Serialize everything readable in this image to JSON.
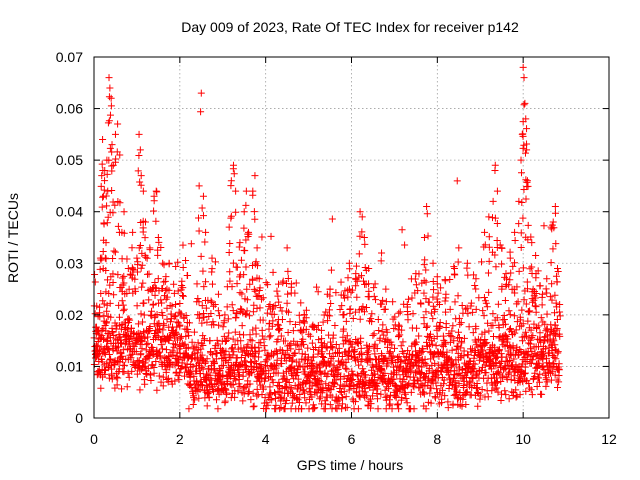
{
  "chart_data": {
    "type": "scatter",
    "title": "Day 009 of 2023, Rate Of TEC Index for receiver p142",
    "xlabel": "GPS time / hours",
    "ylabel": "ROTI / TECUs",
    "xlim": [
      0,
      12
    ],
    "ylim": [
      0,
      0.07
    ],
    "xticks": [
      0,
      2,
      4,
      6,
      8,
      10,
      12
    ],
    "yticks": [
      0,
      0.01,
      0.02,
      0.03,
      0.04,
      0.05,
      0.06,
      0.07
    ],
    "xtick_labels": [
      "0",
      "2",
      "4",
      "6",
      "8",
      "10",
      "12"
    ],
    "ytick_labels": [
      "0",
      "0.01",
      "0.02",
      "0.03",
      "0.04",
      "0.05",
      "0.06",
      "0.07"
    ],
    "grid": true,
    "marker": "+",
    "series": [
      {
        "name": "ROTI",
        "color": "#ff0000",
        "x_start": 0.0,
        "x_end": 10.85,
        "typical_value": 0.009,
        "points": [
          {
            "x": 0.05,
            "y": 0.0125
          },
          {
            "x": 0.1,
            "y": 0.017
          },
          {
            "x": 0.15,
            "y": 0.031
          },
          {
            "x": 0.18,
            "y": 0.047
          },
          {
            "x": 0.2,
            "y": 0.054
          },
          {
            "x": 0.22,
            "y": 0.043
          },
          {
            "x": 0.25,
            "y": 0.048
          },
          {
            "x": 0.28,
            "y": 0.034
          },
          {
            "x": 0.3,
            "y": 0.05
          },
          {
            "x": 0.32,
            "y": 0.044
          },
          {
            "x": 0.35,
            "y": 0.066
          },
          {
            "x": 0.37,
            "y": 0.064
          },
          {
            "x": 0.4,
            "y": 0.062
          },
          {
            "x": 0.42,
            "y": 0.053
          },
          {
            "x": 0.45,
            "y": 0.049
          },
          {
            "x": 0.5,
            "y": 0.055
          },
          {
            "x": 0.55,
            "y": 0.057
          },
          {
            "x": 0.6,
            "y": 0.051
          },
          {
            "x": 0.65,
            "y": 0.036
          },
          {
            "x": 0.7,
            "y": 0.04
          },
          {
            "x": 0.8,
            "y": 0.029
          },
          {
            "x": 0.9,
            "y": 0.036
          },
          {
            "x": 1.0,
            "y": 0.031
          },
          {
            "x": 1.05,
            "y": 0.055
          },
          {
            "x": 1.08,
            "y": 0.052
          },
          {
            "x": 1.1,
            "y": 0.047
          },
          {
            "x": 1.15,
            "y": 0.044
          },
          {
            "x": 1.2,
            "y": 0.038
          },
          {
            "x": 1.3,
            "y": 0.033
          },
          {
            "x": 1.4,
            "y": 0.043
          },
          {
            "x": 1.45,
            "y": 0.044
          },
          {
            "x": 1.5,
            "y": 0.035
          },
          {
            "x": 1.6,
            "y": 0.03
          },
          {
            "x": 1.7,
            "y": 0.025
          },
          {
            "x": 1.75,
            "y": 0.03
          },
          {
            "x": 1.9,
            "y": 0.022
          },
          {
            "x": 2.0,
            "y": 0.018
          },
          {
            "x": 2.2,
            "y": 0.012
          },
          {
            "x": 2.4,
            "y": 0.026
          },
          {
            "x": 2.45,
            "y": 0.045
          },
          {
            "x": 2.5,
            "y": 0.063
          },
          {
            "x": 2.55,
            "y": 0.043
          },
          {
            "x": 2.6,
            "y": 0.036
          },
          {
            "x": 2.75,
            "y": 0.031
          },
          {
            "x": 2.9,
            "y": 0.024
          },
          {
            "x": 3.05,
            "y": 0.02
          },
          {
            "x": 3.15,
            "y": 0.037
          },
          {
            "x": 3.2,
            "y": 0.046
          },
          {
            "x": 3.25,
            "y": 0.049
          },
          {
            "x": 3.3,
            "y": 0.044
          },
          {
            "x": 3.4,
            "y": 0.034
          },
          {
            "x": 3.5,
            "y": 0.04
          },
          {
            "x": 3.55,
            "y": 0.044
          },
          {
            "x": 3.6,
            "y": 0.036
          },
          {
            "x": 3.7,
            "y": 0.044
          },
          {
            "x": 3.75,
            "y": 0.047
          },
          {
            "x": 3.8,
            "y": 0.033
          },
          {
            "x": 3.85,
            "y": 0.027
          },
          {
            "x": 4.1,
            "y": 0.022
          },
          {
            "x": 4.3,
            "y": 0.018
          },
          {
            "x": 4.5,
            "y": 0.033
          },
          {
            "x": 4.6,
            "y": 0.026
          },
          {
            "x": 4.9,
            "y": 0.02
          },
          {
            "x": 5.1,
            "y": 0.018
          },
          {
            "x": 5.3,
            "y": 0.017
          },
          {
            "x": 5.5,
            "y": 0.025
          },
          {
            "x": 5.8,
            "y": 0.02
          },
          {
            "x": 5.95,
            "y": 0.03
          },
          {
            "x": 6.1,
            "y": 0.028
          },
          {
            "x": 6.2,
            "y": 0.04
          },
          {
            "x": 6.25,
            "y": 0.039
          },
          {
            "x": 6.3,
            "y": 0.035
          },
          {
            "x": 6.4,
            "y": 0.029
          },
          {
            "x": 6.55,
            "y": 0.026
          },
          {
            "x": 6.7,
            "y": 0.032
          },
          {
            "x": 6.8,
            "y": 0.025
          },
          {
            "x": 7.1,
            "y": 0.018
          },
          {
            "x": 7.3,
            "y": 0.022
          },
          {
            "x": 7.5,
            "y": 0.028
          },
          {
            "x": 7.7,
            "y": 0.035
          },
          {
            "x": 7.75,
            "y": 0.041
          },
          {
            "x": 7.9,
            "y": 0.03
          },
          {
            "x": 8.0,
            "y": 0.026
          },
          {
            "x": 8.2,
            "y": 0.024
          },
          {
            "x": 8.4,
            "y": 0.029
          },
          {
            "x": 8.5,
            "y": 0.033
          },
          {
            "x": 8.7,
            "y": 0.03
          },
          {
            "x": 8.9,
            "y": 0.027
          },
          {
            "x": 9.1,
            "y": 0.036
          },
          {
            "x": 9.2,
            "y": 0.039
          },
          {
            "x": 9.3,
            "y": 0.042
          },
          {
            "x": 9.35,
            "y": 0.049
          },
          {
            "x": 9.4,
            "y": 0.044
          },
          {
            "x": 9.5,
            "y": 0.033
          },
          {
            "x": 9.6,
            "y": 0.028
          },
          {
            "x": 9.7,
            "y": 0.031
          },
          {
            "x": 9.8,
            "y": 0.036
          },
          {
            "x": 9.9,
            "y": 0.042
          },
          {
            "x": 9.95,
            "y": 0.05
          },
          {
            "x": 9.98,
            "y": 0.055
          },
          {
            "x": 10.0,
            "y": 0.068
          },
          {
            "x": 10.02,
            "y": 0.066
          },
          {
            "x": 10.04,
            "y": 0.061
          },
          {
            "x": 10.06,
            "y": 0.058
          },
          {
            "x": 10.08,
            "y": 0.052
          },
          {
            "x": 10.1,
            "y": 0.046
          },
          {
            "x": 10.2,
            "y": 0.034
          },
          {
            "x": 10.3,
            "y": 0.028
          },
          {
            "x": 10.45,
            "y": 0.024
          },
          {
            "x": 10.55,
            "y": 0.027
          },
          {
            "x": 10.65,
            "y": 0.037
          },
          {
            "x": 10.7,
            "y": 0.038
          },
          {
            "x": 10.75,
            "y": 0.041
          },
          {
            "x": 10.8,
            "y": 0.029
          },
          {
            "x": 10.85,
            "y": 0.022
          }
        ]
      }
    ]
  }
}
